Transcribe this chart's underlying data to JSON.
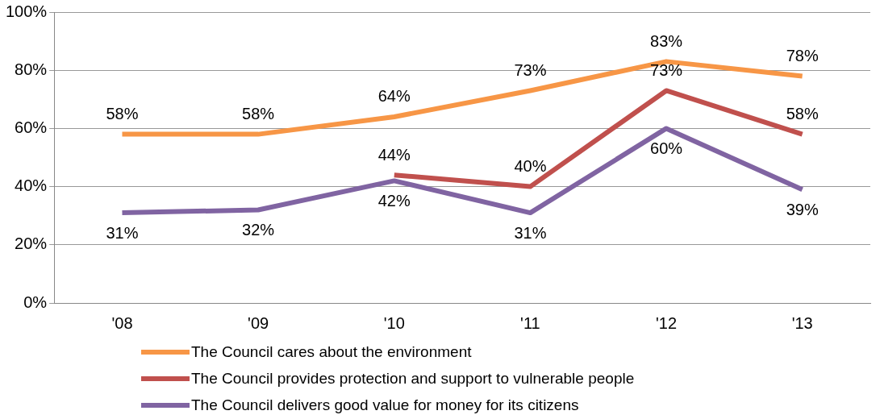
{
  "chart_data": {
    "type": "line",
    "categories": [
      "'08",
      "'09",
      "'10",
      "'11",
      "'12",
      "'13"
    ],
    "series": [
      {
        "name": "The Council cares about the environment",
        "color": "#f79646",
        "values": [
          58,
          58,
          64,
          73,
          83,
          78
        ],
        "value_labels": [
          "58%",
          "58%",
          "64%",
          "73%",
          "83%",
          "78%"
        ]
      },
      {
        "name": "The Council provides protection and support to vulnerable people",
        "color": "#c0504d",
        "values": [
          null,
          null,
          44,
          40,
          73,
          58
        ],
        "value_labels": [
          null,
          null,
          "44%",
          "40%",
          "73%",
          "58%"
        ]
      },
      {
        "name": "The Council delivers good value for money for its citizens",
        "color": "#8064a2",
        "values": [
          31,
          32,
          42,
          31,
          60,
          39
        ],
        "value_labels": [
          "31%",
          "32%",
          "42%",
          "31%",
          "60%",
          "39%"
        ]
      }
    ],
    "ylim": [
      0,
      100
    ],
    "yticks": [
      {
        "value": 0,
        "label": "0%"
      },
      {
        "value": 20,
        "label": "20%"
      },
      {
        "value": 40,
        "label": "40%"
      },
      {
        "value": 60,
        "label": "60%"
      },
      {
        "value": 80,
        "label": "80%"
      },
      {
        "value": 100,
        "label": "100%"
      }
    ],
    "grid": "y",
    "legend": "bottom",
    "marker": "none",
    "line_style": "solid"
  }
}
